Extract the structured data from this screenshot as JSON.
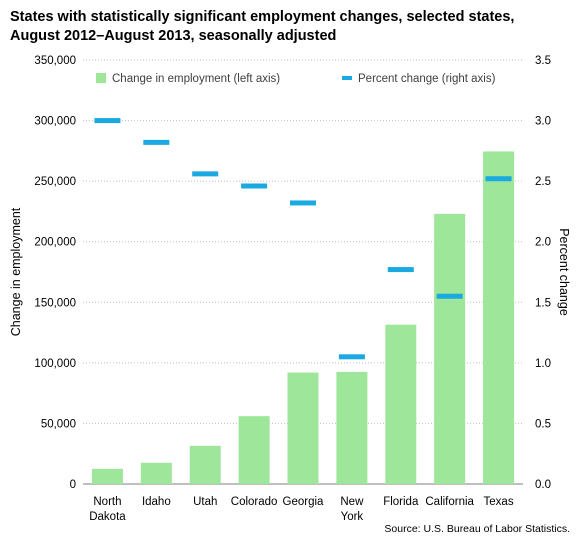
{
  "title_lines": [
    "States with statistically significant employment changes, selected states,",
    "August 2012–August 2013, seasonally adjusted"
  ],
  "source": "Source: U.S. Bureau of Labor Statistics.",
  "colors": {
    "bar": "#9de69a",
    "marker": "#1aa9e0",
    "grid": "#bfbfbf",
    "text": "#000000"
  },
  "chart_data": {
    "type": "bar",
    "categories": [
      [
        "North",
        "Dakota"
      ],
      [
        "Idaho"
      ],
      [
        "Utah"
      ],
      [
        "Colorado"
      ],
      [
        "Georgia"
      ],
      [
        "New",
        "York"
      ],
      [
        "Florida"
      ],
      [
        "California"
      ],
      [
        "Texas"
      ]
    ],
    "series": [
      {
        "name": "Change in employment (left axis)",
        "axis": "left",
        "kind": "bar",
        "values": [
          12500,
          17500,
          31500,
          56000,
          92000,
          92500,
          131500,
          223000,
          274500
        ]
      },
      {
        "name": "Percent change (right axis)",
        "axis": "right",
        "kind": "dash-marker",
        "values": [
          3.0,
          2.82,
          2.56,
          2.46,
          2.32,
          1.05,
          1.77,
          1.55,
          2.52
        ]
      }
    ],
    "ylabel": "Change in employment",
    "y2label": "Percent change",
    "ylim": [
      0,
      350000
    ],
    "y2lim": [
      0,
      3.5
    ],
    "yticks": [
      "0",
      "50,000",
      "100,000",
      "150,000",
      "200,000",
      "250,000",
      "300,000",
      "350,000"
    ],
    "y2ticks": [
      "0.0",
      "0.5",
      "1.0",
      "1.5",
      "2.0",
      "2.5",
      "3.0",
      "3.5"
    ],
    "grid": true,
    "legend": "top, inside plot"
  }
}
